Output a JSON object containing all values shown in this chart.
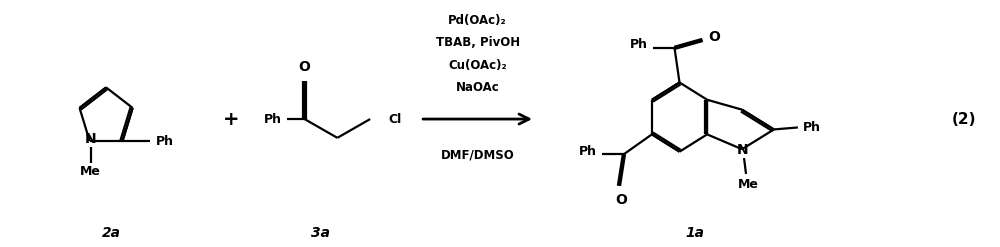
{
  "bg_color": "#ffffff",
  "fig_width": 10.0,
  "fig_height": 2.47,
  "dpi": 100,
  "line_color": "#000000",
  "line_width": 1.6,
  "reagents_above": [
    "Pd(OAc)₂",
    "TBAB, PivOH",
    "Cu(OAc)₂",
    "NaOAc"
  ],
  "reagents_below": "DMF/DMSO",
  "label_2a": "2a",
  "label_3a": "3a",
  "label_1a": "1a",
  "equation_number": "(2)"
}
